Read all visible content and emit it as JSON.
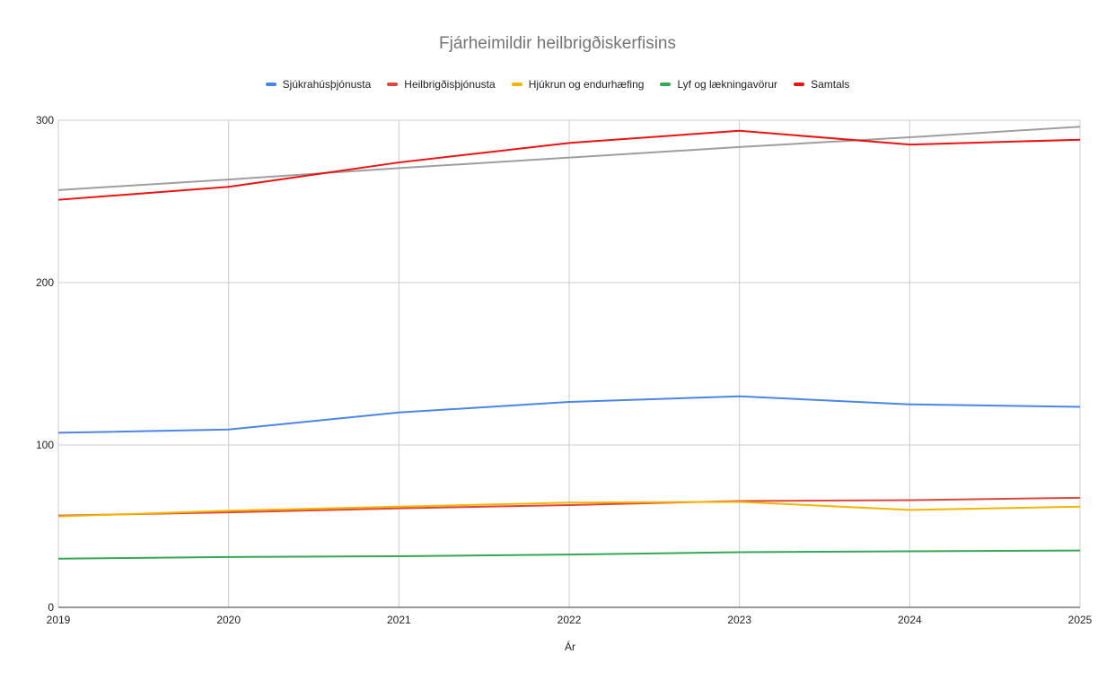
{
  "chart_data": {
    "type": "line",
    "title": "Fjárheimildir heilbrigðiskerfisins",
    "xlabel": "Ár",
    "ylabel": "",
    "categories": [
      "2019",
      "2020",
      "2021",
      "2022",
      "2023",
      "2024",
      "2025"
    ],
    "ylim": [
      0,
      300
    ],
    "yticks": [
      "0",
      "100",
      "200",
      "300"
    ],
    "grid": true,
    "legend_position": "top",
    "series": [
      {
        "name": "Sjúkrahúsþjónusta",
        "color": "#4a86e8",
        "values": [
          107.5,
          109.5,
          120,
          126.5,
          130,
          125,
          123.5
        ]
      },
      {
        "name": "Heilbrigðisþjónusta",
        "color": "#e0453b",
        "values": [
          56.5,
          58.5,
          61,
          63,
          65.5,
          66,
          67.5
        ]
      },
      {
        "name": "Hjúkrun og endurhæfing",
        "color": "#f4b400",
        "values": [
          56,
          59.5,
          62,
          64.5,
          65,
          60,
          62
        ]
      },
      {
        "name": "Lyf og lækningavörur",
        "color": "#34a853",
        "values": [
          30,
          31,
          31.5,
          32.5,
          34,
          34.5,
          35
        ]
      },
      {
        "name": "Samtals",
        "color": "#ee1111",
        "values": [
          251,
          259,
          274,
          286,
          293.5,
          285,
          288
        ]
      }
    ],
    "trendline": {
      "color": "#9e9e9e",
      "values": [
        257,
        263.5,
        270.5,
        277,
        283.5,
        289.5,
        296
      ]
    }
  }
}
